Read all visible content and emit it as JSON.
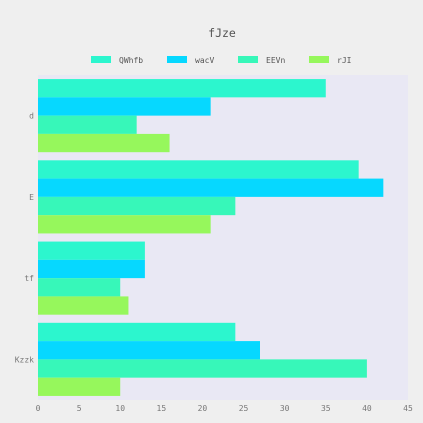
{
  "chart_data": {
    "type": "bar",
    "orientation": "horizontal",
    "title": "fJze",
    "xlabel": "",
    "ylabel": "",
    "categories": [
      "d",
      "E",
      "tf",
      "Kzzk"
    ],
    "series": [
      {
        "name": "QWhfb",
        "values": [
          35,
          39,
          13,
          24
        ],
        "color": "#2cf6ce"
      },
      {
        "name": "wacV",
        "values": [
          21,
          42,
          13,
          27
        ],
        "color": "#06d8ff"
      },
      {
        "name": "EEVn",
        "values": [
          12,
          24,
          10,
          40
        ],
        "color": "#37f7b9"
      },
      {
        "name": "rJI",
        "values": [
          16,
          21,
          11,
          10
        ],
        "color": "#96f75c"
      }
    ],
    "xlim": [
      0,
      45
    ],
    "xticks": [
      0,
      5,
      10,
      15,
      20,
      25,
      30,
      35,
      40,
      45
    ],
    "grid": false,
    "legend_position": "top",
    "plot_background": "#e9e8f4"
  }
}
